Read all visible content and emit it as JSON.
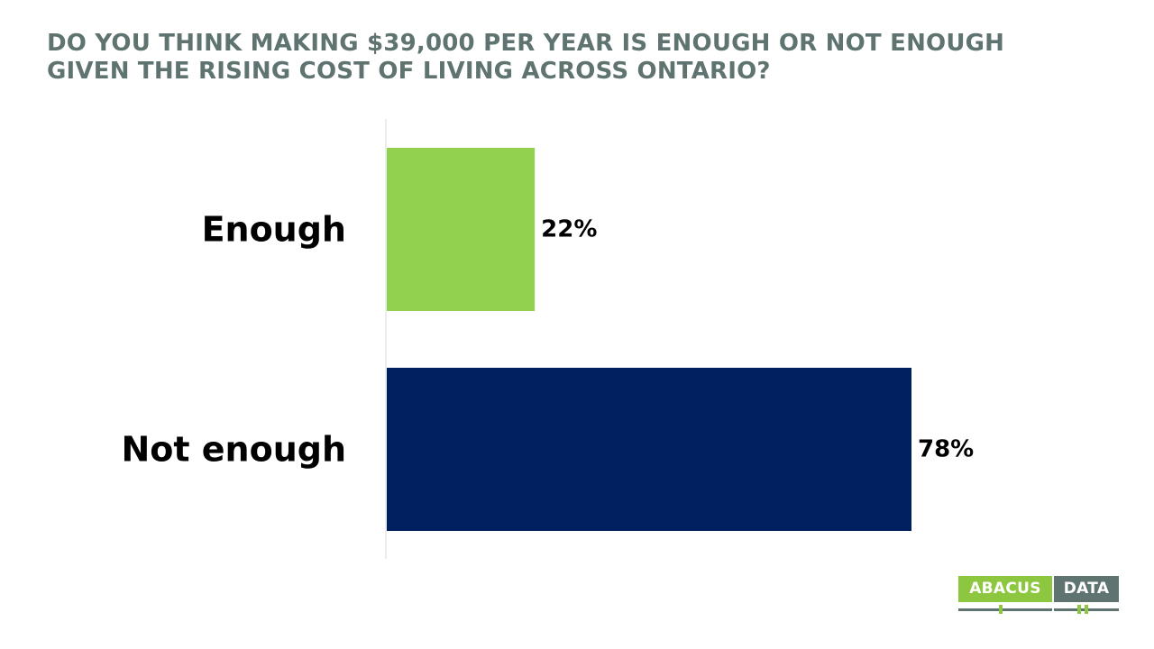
{
  "title": {
    "line1": "DO YOU THINK MAKING $39,000 PER YEAR IS ENOUGH OR NOT ENOUGH",
    "line2": "GIVEN THE RISING COST OF LIVING ACROSS ONTARIO?"
  },
  "colors": {
    "title": "#5f7470",
    "axis": "#d9d9d9",
    "category_label": "#000000",
    "value_label": "#000000",
    "logo_green": "#8dc63f",
    "logo_gray": "#5f7470"
  },
  "chart_data": {
    "type": "bar",
    "orientation": "horizontal",
    "title": "DO YOU THINK MAKING $39,000 PER YEAR IS ENOUGH OR NOT ENOUGH GIVEN THE RISING COST OF LIVING ACROSS ONTARIO?",
    "categories": [
      "Enough",
      "Not enough"
    ],
    "values": [
      22,
      78
    ],
    "value_labels": [
      "22%",
      "78%"
    ],
    "bar_colors": [
      "#92d050",
      "#002060"
    ],
    "unit": "%",
    "xlim": [
      0,
      100
    ],
    "grid": false,
    "legend": "none"
  },
  "logo": {
    "left_text": "ABACUS",
    "right_text": "DATA"
  }
}
